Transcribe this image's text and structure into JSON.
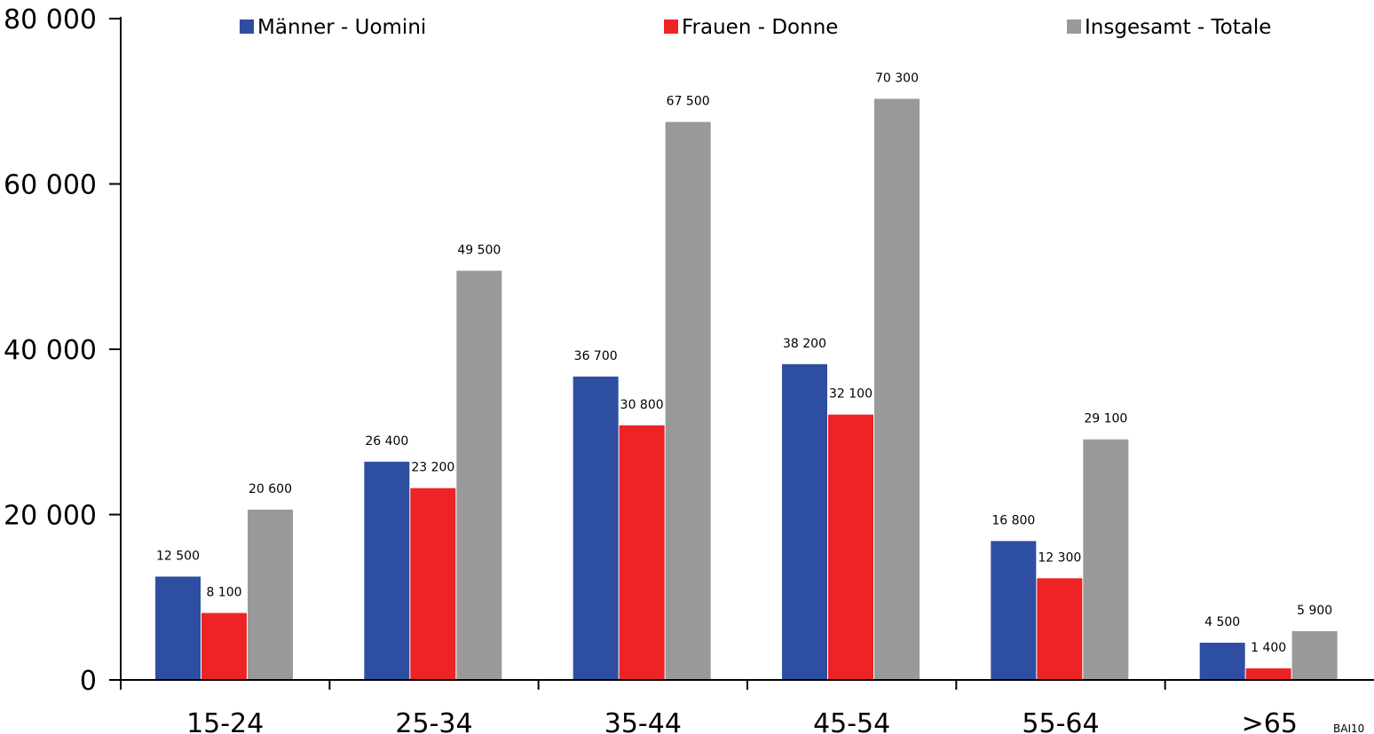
{
  "chart_data": {
    "type": "bar",
    "title": "",
    "xlabel": "",
    "ylabel": "",
    "categories": [
      "15-24",
      "25-34",
      "35-44",
      "45-54",
      "55-64",
      ">65"
    ],
    "series": [
      {
        "name": "Männer - Uomini",
        "color": "#2e4ea1",
        "values": [
          12500,
          26400,
          36700,
          38200,
          16800,
          4500
        ],
        "labels": [
          "12 500",
          "26 400",
          "36 700",
          "38 200",
          "16 800",
          "4 500"
        ]
      },
      {
        "name": "Frauen - Donne",
        "color": "#ee2326",
        "values": [
          8100,
          23200,
          30800,
          32100,
          12300,
          1400
        ],
        "labels": [
          "8 100",
          "23 200",
          "30 800",
          "32 100",
          "12 300",
          "1 400"
        ]
      },
      {
        "name": "Insgesamt - Totale",
        "color": "#999999",
        "values": [
          20600,
          49500,
          67500,
          70300,
          29100,
          5900
        ],
        "labels": [
          "20 600",
          "49 500",
          "67 500",
          "70 300",
          "29 100",
          "5 900"
        ]
      }
    ],
    "ylim": [
      0,
      80000
    ],
    "yticks": [
      0,
      20000,
      40000,
      60000,
      80000
    ],
    "ytick_labels": [
      "0",
      "20 000",
      "40 000",
      "60 000",
      "80 000"
    ],
    "grid": false,
    "legend": "top",
    "footnote": "BAI10"
  }
}
